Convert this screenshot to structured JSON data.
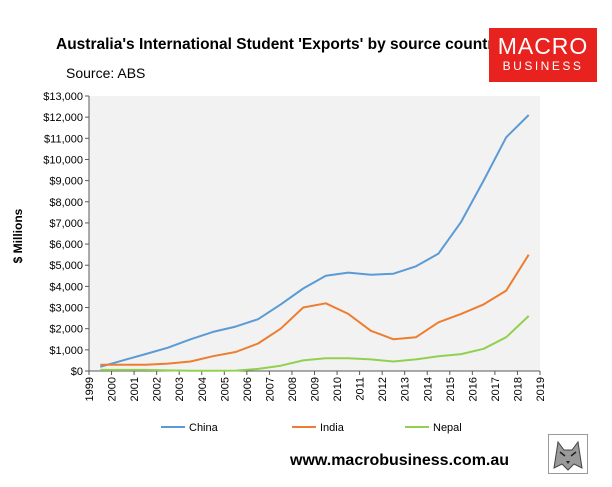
{
  "header": {
    "title": "Australia's International Student 'Exports' by source country",
    "source": "Source: ABS"
  },
  "logo": {
    "line1": "MACRO",
    "line2": "BUSINESS"
  },
  "footer": {
    "website": "www.macrobusiness.com.au"
  },
  "colors": {
    "china": "#5b9bd5",
    "india": "#ed7d31",
    "nepal": "#92d050",
    "plot_bg": "#f2f2f2",
    "logo": "#e8231f"
  },
  "chart_data": {
    "type": "line",
    "title": "Australia's International Student 'Exports' by source country",
    "ylabel": "$ Millions",
    "xlabel": "",
    "xlim": [
      1999,
      2019
    ],
    "ylim": [
      0,
      13000
    ],
    "x_ticks": [
      "1999",
      "2000",
      "2001",
      "2002",
      "2003",
      "2004",
      "2005",
      "2006",
      "2007",
      "2008",
      "2009",
      "2010",
      "2011",
      "2012",
      "2013",
      "2014",
      "2015",
      "2016",
      "2017",
      "2018",
      "2019"
    ],
    "y_ticks": [
      "$0",
      "$1,000",
      "$2,000",
      "$3,000",
      "$4,000",
      "$5,000",
      "$6,000",
      "$7,000",
      "$8,000",
      "$9,000",
      "$10,000",
      "$11,000",
      "$12,000",
      "$13,000"
    ],
    "y_tick_values": [
      0,
      1000,
      2000,
      3000,
      4000,
      5000,
      6000,
      7000,
      8000,
      9000,
      10000,
      11000,
      12000,
      13000
    ],
    "grid": false,
    "legend": "bottom",
    "x": [
      1999.5,
      2000.5,
      2001.5,
      2002.5,
      2003.5,
      2004.5,
      2005.5,
      2006.5,
      2007.5,
      2008.5,
      2009.5,
      2010.5,
      2011.5,
      2012.5,
      2013.5,
      2014.5,
      2015.5,
      2016.5,
      2017.5,
      2018.5
    ],
    "series": [
      {
        "name": "China",
        "color": "#5b9bd5",
        "values": [
          200,
          500,
          800,
          1100,
          1500,
          1850,
          2100,
          2450,
          3150,
          3900,
          4500,
          4650,
          4550,
          4600,
          4950,
          5550,
          7050,
          9000,
          11050,
          12100
        ]
      },
      {
        "name": "India",
        "color": "#ed7d31",
        "values": [
          300,
          300,
          300,
          350,
          450,
          700,
          900,
          1300,
          2000,
          3000,
          3200,
          2700,
          1900,
          1500,
          1600,
          2300,
          2700,
          3150,
          3800,
          5500
        ]
      },
      {
        "name": "Nepal",
        "color": "#92d050",
        "values": [
          50,
          50,
          50,
          30,
          10,
          10,
          20,
          100,
          250,
          500,
          600,
          600,
          550,
          450,
          550,
          700,
          800,
          1050,
          1600,
          2600
        ]
      }
    ]
  }
}
